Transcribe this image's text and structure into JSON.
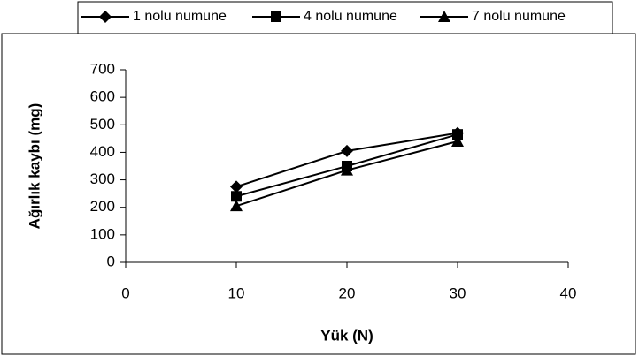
{
  "chart_data": {
    "type": "line",
    "x_label": "Yük (N)",
    "y_label": "Ağırlık kaybı (mg)",
    "x": [
      10,
      20,
      30
    ],
    "series": [
      {
        "name": "1 nolu numune",
        "color": "#000000",
        "marker": "diamond",
        "values": [
          275,
          405,
          470
        ]
      },
      {
        "name": "4 nolu numune",
        "color": "#000000",
        "marker": "square",
        "values": [
          240,
          350,
          465
        ]
      },
      {
        "name": "7 nolu numune",
        "color": "#000000",
        "marker": "triangle",
        "values": [
          205,
          335,
          440
        ]
      }
    ],
    "xlim": [
      0,
      40
    ],
    "xticks": [
      0,
      10,
      20,
      30,
      40
    ],
    "ylim": [
      0,
      700
    ],
    "yticks": [
      0,
      100,
      200,
      300,
      400,
      500,
      600,
      700
    ],
    "grid": false,
    "legend": "top"
  }
}
